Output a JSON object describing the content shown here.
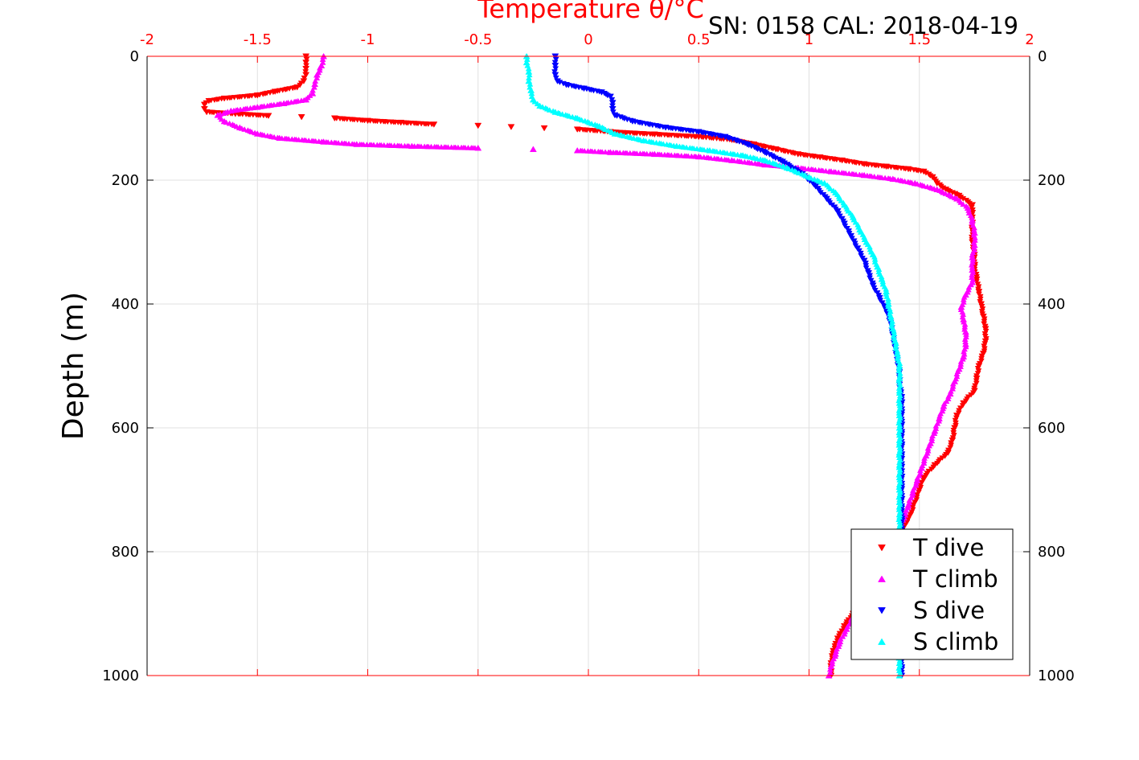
{
  "header": {
    "title": "Temperature θ/°C",
    "info": "SN: 0158  CAL: 2018-04-19"
  },
  "colors": {
    "t_dive": "#ff0000",
    "t_climb": "#ff00ff",
    "s_dive": "#0000ff",
    "s_climb": "#00ffff",
    "grid": "#e0e0e0",
    "top_axis": "#ff0000"
  },
  "chart_data": {
    "type": "scatter",
    "title": "Temperature θ/°C",
    "ylabel": "Depth (m)",
    "xlabel": "",
    "xlim": [
      -2,
      2
    ],
    "ylim": [
      0,
      1000
    ],
    "y_reversed": true,
    "grid": true,
    "legend_position": "bottom-right",
    "x_tick_labels": [
      "-2",
      "-1.5",
      "-1",
      "-0.5",
      "0",
      "0.5",
      "1",
      "1.5",
      "2"
    ],
    "y_tick_labels": [
      "0",
      "200",
      "400",
      "600",
      "800",
      "1000"
    ],
    "series": [
      {
        "name": "T dive",
        "marker": "triangle-down",
        "points": [
          [
            -1.28,
            0
          ],
          [
            -1.28,
            10
          ],
          [
            -1.28,
            20
          ],
          [
            -1.28,
            30
          ],
          [
            -1.29,
            40
          ],
          [
            -1.32,
            50
          ],
          [
            -1.42,
            57
          ],
          [
            -1.5,
            63
          ],
          [
            -1.65,
            68
          ],
          [
            -1.72,
            72
          ],
          [
            -1.74,
            78
          ],
          [
            -1.74,
            85
          ],
          [
            -1.73,
            90
          ],
          [
            -1.6,
            93
          ],
          [
            -1.45,
            96
          ],
          [
            -1.3,
            98
          ],
          [
            -1.15,
            100
          ],
          [
            -1.0,
            104
          ],
          [
            -0.85,
            107
          ],
          [
            -0.7,
            110
          ],
          [
            -0.5,
            112
          ],
          [
            -0.35,
            114
          ],
          [
            -0.2,
            116
          ],
          [
            -0.05,
            118
          ],
          [
            0.1,
            122
          ],
          [
            0.3,
            126
          ],
          [
            0.5,
            130
          ],
          [
            0.65,
            135
          ],
          [
            0.75,
            142
          ],
          [
            0.85,
            150
          ],
          [
            0.95,
            158
          ],
          [
            1.05,
            163
          ],
          [
            1.15,
            168
          ],
          [
            1.25,
            174
          ],
          [
            1.35,
            178
          ],
          [
            1.45,
            182
          ],
          [
            1.52,
            186
          ],
          [
            1.56,
            195
          ],
          [
            1.58,
            205
          ],
          [
            1.62,
            215
          ],
          [
            1.68,
            225
          ],
          [
            1.74,
            240
          ],
          [
            1.74,
            260
          ],
          [
            1.74,
            280
          ],
          [
            1.74,
            300
          ],
          [
            1.75,
            320
          ],
          [
            1.75,
            340
          ],
          [
            1.76,
            360
          ],
          [
            1.77,
            380
          ],
          [
            1.78,
            400
          ],
          [
            1.79,
            420
          ],
          [
            1.8,
            440
          ],
          [
            1.8,
            460
          ],
          [
            1.79,
            480
          ],
          [
            1.77,
            500
          ],
          [
            1.76,
            520
          ],
          [
            1.75,
            540
          ],
          [
            1.7,
            560
          ],
          [
            1.67,
            580
          ],
          [
            1.66,
            600
          ],
          [
            1.65,
            620
          ],
          [
            1.63,
            640
          ],
          [
            1.57,
            660
          ],
          [
            1.52,
            680
          ],
          [
            1.5,
            700
          ],
          [
            1.48,
            720
          ],
          [
            1.46,
            740
          ],
          [
            1.43,
            760
          ],
          [
            1.4,
            780
          ],
          [
            1.37,
            800
          ],
          [
            1.34,
            820
          ],
          [
            1.3,
            840
          ],
          [
            1.27,
            860
          ],
          [
            1.24,
            880
          ],
          [
            1.2,
            900
          ],
          [
            1.16,
            920
          ],
          [
            1.13,
            940
          ],
          [
            1.11,
            960
          ],
          [
            1.1,
            980
          ],
          [
            1.1,
            1000
          ]
        ]
      },
      {
        "name": "T climb",
        "marker": "triangle-up",
        "points": [
          [
            1.09,
            1000
          ],
          [
            1.1,
            985
          ],
          [
            1.12,
            965
          ],
          [
            1.14,
            945
          ],
          [
            1.17,
            925
          ],
          [
            1.2,
            905
          ],
          [
            1.23,
            885
          ],
          [
            1.26,
            865
          ],
          [
            1.29,
            845
          ],
          [
            1.33,
            825
          ],
          [
            1.36,
            805
          ],
          [
            1.39,
            785
          ],
          [
            1.41,
            765
          ],
          [
            1.43,
            745
          ],
          [
            1.45,
            725
          ],
          [
            1.47,
            705
          ],
          [
            1.49,
            685
          ],
          [
            1.51,
            665
          ],
          [
            1.53,
            645
          ],
          [
            1.55,
            625
          ],
          [
            1.57,
            605
          ],
          [
            1.59,
            585
          ],
          [
            1.61,
            565
          ],
          [
            1.64,
            545
          ],
          [
            1.66,
            525
          ],
          [
            1.68,
            505
          ],
          [
            1.7,
            485
          ],
          [
            1.71,
            465
          ],
          [
            1.71,
            445
          ],
          [
            1.7,
            425
          ],
          [
            1.69,
            405
          ],
          [
            1.71,
            385
          ],
          [
            1.74,
            365
          ],
          [
            1.74,
            345
          ],
          [
            1.74,
            325
          ],
          [
            1.75,
            305
          ],
          [
            1.75,
            285
          ],
          [
            1.74,
            265
          ],
          [
            1.72,
            245
          ],
          [
            1.67,
            230
          ],
          [
            1.58,
            215
          ],
          [
            1.48,
            205
          ],
          [
            1.38,
            198
          ],
          [
            1.25,
            192
          ],
          [
            1.1,
            186
          ],
          [
            0.95,
            180
          ],
          [
            0.8,
            175
          ],
          [
            0.65,
            168
          ],
          [
            0.5,
            162
          ],
          [
            0.3,
            158
          ],
          [
            0.1,
            155
          ],
          [
            -0.05,
            152
          ],
          [
            -0.25,
            150
          ],
          [
            -0.5,
            148
          ],
          [
            -0.8,
            145
          ],
          [
            -1.05,
            142
          ],
          [
            -1.2,
            138
          ],
          [
            -1.4,
            132
          ],
          [
            -1.5,
            125
          ],
          [
            -1.58,
            115
          ],
          [
            -1.65,
            105
          ],
          [
            -1.68,
            95
          ],
          [
            -1.62,
            88
          ],
          [
            -1.5,
            82
          ],
          [
            -1.38,
            76
          ],
          [
            -1.28,
            70
          ],
          [
            -1.25,
            60
          ],
          [
            -1.24,
            45
          ],
          [
            -1.23,
            30
          ],
          [
            -1.21,
            15
          ],
          [
            -1.2,
            0
          ]
        ]
      },
      {
        "name": "S dive",
        "marker": "triangle-down",
        "points": [
          [
            -0.15,
            0
          ],
          [
            -0.15,
            15
          ],
          [
            -0.15,
            30
          ],
          [
            -0.14,
            40
          ],
          [
            -0.1,
            46
          ],
          [
            -0.02,
            52
          ],
          [
            0.06,
            58
          ],
          [
            0.1,
            65
          ],
          [
            0.11,
            75
          ],
          [
            0.11,
            85
          ],
          [
            0.12,
            95
          ],
          [
            0.2,
            105
          ],
          [
            0.35,
            115
          ],
          [
            0.5,
            122
          ],
          [
            0.62,
            130
          ],
          [
            0.72,
            142
          ],
          [
            0.8,
            155
          ],
          [
            0.88,
            170
          ],
          [
            0.97,
            190
          ],
          [
            1.03,
            210
          ],
          [
            1.08,
            230
          ],
          [
            1.13,
            250
          ],
          [
            1.16,
            270
          ],
          [
            1.19,
            290
          ],
          [
            1.22,
            310
          ],
          [
            1.25,
            330
          ],
          [
            1.27,
            350
          ],
          [
            1.29,
            370
          ],
          [
            1.32,
            390
          ],
          [
            1.35,
            410
          ],
          [
            1.37,
            430
          ],
          [
            1.38,
            450
          ],
          [
            1.39,
            470
          ],
          [
            1.4,
            490
          ],
          [
            1.41,
            510
          ],
          [
            1.41,
            530
          ],
          [
            1.42,
            550
          ],
          [
            1.42,
            570
          ],
          [
            1.42,
            590
          ],
          [
            1.42,
            610
          ],
          [
            1.42,
            630
          ],
          [
            1.42,
            650
          ],
          [
            1.42,
            670
          ],
          [
            1.42,
            690
          ],
          [
            1.42,
            710
          ],
          [
            1.42,
            730
          ],
          [
            1.42,
            750
          ],
          [
            1.42,
            770
          ],
          [
            1.42,
            790
          ],
          [
            1.42,
            810
          ],
          [
            1.42,
            830
          ],
          [
            1.42,
            850
          ],
          [
            1.42,
            870
          ],
          [
            1.42,
            890
          ],
          [
            1.42,
            910
          ],
          [
            1.42,
            930
          ],
          [
            1.42,
            950
          ],
          [
            1.42,
            970
          ],
          [
            1.42,
            990
          ],
          [
            1.42,
            1000
          ]
        ]
      },
      {
        "name": "S climb",
        "marker": "triangle-up",
        "points": [
          [
            1.41,
            1000
          ],
          [
            1.41,
            980
          ],
          [
            1.41,
            960
          ],
          [
            1.41,
            940
          ],
          [
            1.41,
            920
          ],
          [
            1.41,
            900
          ],
          [
            1.41,
            880
          ],
          [
            1.41,
            860
          ],
          [
            1.41,
            840
          ],
          [
            1.41,
            820
          ],
          [
            1.41,
            800
          ],
          [
            1.41,
            780
          ],
          [
            1.41,
            760
          ],
          [
            1.41,
            740
          ],
          [
            1.41,
            720
          ],
          [
            1.41,
            700
          ],
          [
            1.41,
            680
          ],
          [
            1.41,
            660
          ],
          [
            1.41,
            640
          ],
          [
            1.41,
            620
          ],
          [
            1.41,
            600
          ],
          [
            1.41,
            580
          ],
          [
            1.41,
            560
          ],
          [
            1.41,
            540
          ],
          [
            1.41,
            520
          ],
          [
            1.41,
            500
          ],
          [
            1.4,
            480
          ],
          [
            1.39,
            460
          ],
          [
            1.38,
            440
          ],
          [
            1.37,
            420
          ],
          [
            1.36,
            400
          ],
          [
            1.35,
            380
          ],
          [
            1.33,
            360
          ],
          [
            1.31,
            340
          ],
          [
            1.29,
            320
          ],
          [
            1.26,
            300
          ],
          [
            1.23,
            280
          ],
          [
            1.2,
            260
          ],
          [
            1.16,
            240
          ],
          [
            1.12,
            220
          ],
          [
            1.07,
            205
          ],
          [
            1.0,
            195
          ],
          [
            0.9,
            180
          ],
          [
            0.8,
            168
          ],
          [
            0.7,
            160
          ],
          [
            0.55,
            152
          ],
          [
            0.4,
            145
          ],
          [
            0.25,
            136
          ],
          [
            0.12,
            125
          ],
          [
            0.05,
            113
          ],
          [
            -0.05,
            100
          ],
          [
            -0.15,
            90
          ],
          [
            -0.22,
            80
          ],
          [
            -0.25,
            70
          ],
          [
            -0.26,
            55
          ],
          [
            -0.27,
            40
          ],
          [
            -0.27,
            25
          ],
          [
            -0.28,
            10
          ],
          [
            -0.28,
            0
          ]
        ]
      }
    ]
  }
}
